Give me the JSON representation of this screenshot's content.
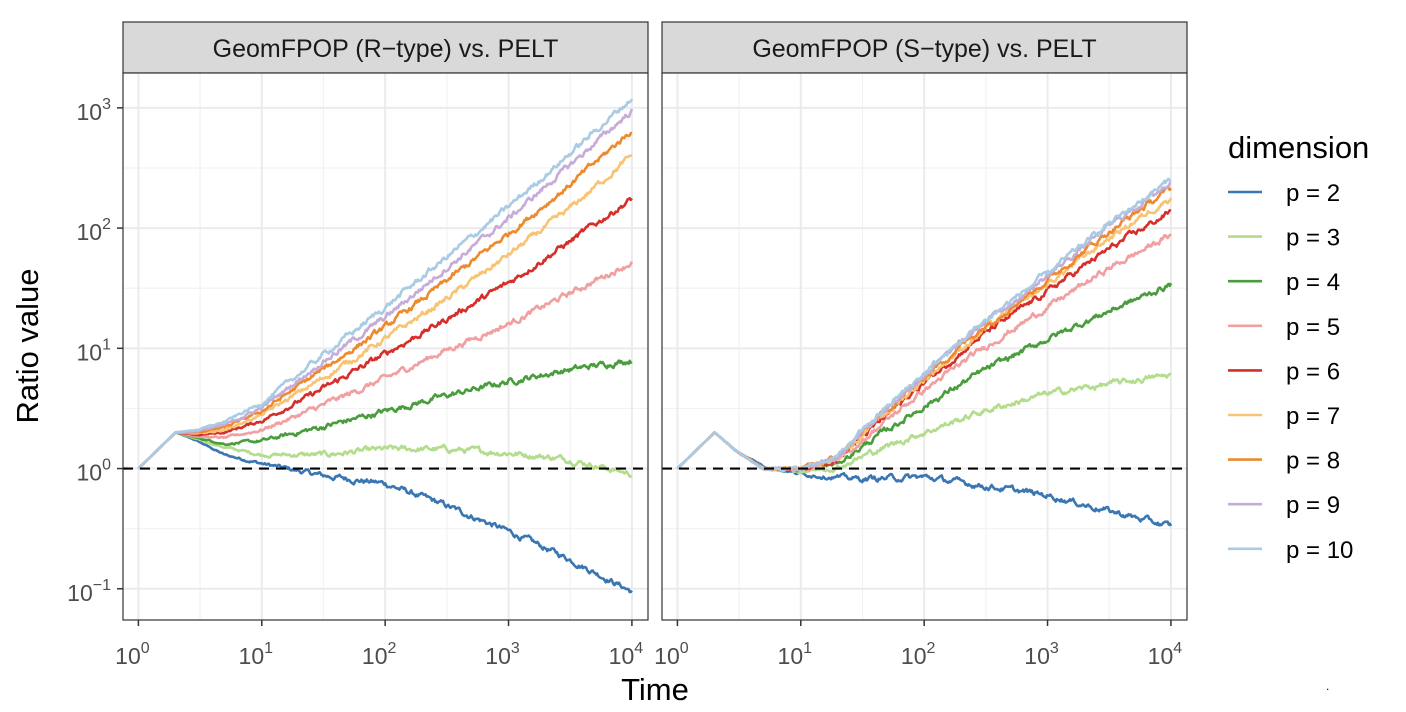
{
  "chart_data": {
    "type": "line",
    "xlabel": "Time",
    "ylabel": "Ratio value",
    "x_scale": "log10",
    "y_scale": "log10",
    "xlim": [
      0.75,
      13500
    ],
    "ylim": [
      0.055,
      1950
    ],
    "x_ticks": [
      1,
      10,
      100,
      1000,
      10000
    ],
    "x_tick_labels": [
      {
        "base": "10",
        "exp": "0"
      },
      {
        "base": "10",
        "exp": "1"
      },
      {
        "base": "10",
        "exp": "2"
      },
      {
        "base": "10",
        "exp": "3"
      },
      {
        "base": "10",
        "exp": "4"
      }
    ],
    "y_ticks": [
      0.1,
      1,
      10,
      100,
      1000
    ],
    "y_tick_labels": [
      {
        "base": "10",
        "exp": "−1"
      },
      {
        "base": "10",
        "exp": "0"
      },
      {
        "base": "10",
        "exp": "1"
      },
      {
        "base": "10",
        "exp": "2"
      },
      {
        "base": "10",
        "exp": "3"
      }
    ],
    "reference_line": {
      "y": 1,
      "style": "dashed",
      "color": "#000000"
    },
    "grid": true,
    "legend": {
      "title": "dimension",
      "position": "right",
      "entries": [
        {
          "label": "p = 2",
          "color": "#3a77b2"
        },
        {
          "label": "p = 3",
          "color": "#b3dc8c"
        },
        {
          "label": "p = 4",
          "color": "#4a9d3c"
        },
        {
          "label": "p = 5",
          "color": "#f0a0a0"
        },
        {
          "label": "p = 6",
          "color": "#d62f2b"
        },
        {
          "label": "p = 7",
          "color": "#f8c474"
        },
        {
          "label": "p = 8",
          "color": "#ee8a2e"
        },
        {
          "label": "p = 9",
          "color": "#c5acd9"
        },
        {
          "label": "p = 10",
          "color": "#a9cbe3"
        }
      ]
    },
    "panels": [
      {
        "title": "GeomFPOP (R−type) vs. PELT",
        "series": [
          {
            "p": 2,
            "color": "#3a77b2",
            "points": [
              [
                1,
                1
              ],
              [
                2,
                2
              ],
              [
                3,
                1.7
              ],
              [
                5,
                1.3
              ],
              [
                10,
                1.1
              ],
              [
                30,
                0.88
              ],
              [
                100,
                0.75
              ],
              [
                300,
                0.5
              ],
              [
                1000,
                0.3
              ],
              [
                3000,
                0.18
              ],
              [
                10000,
                0.095
              ]
            ]
          },
          {
            "p": 3,
            "color": "#b3dc8c",
            "points": [
              [
                1,
                1
              ],
              [
                2,
                2
              ],
              [
                3,
                1.75
              ],
              [
                5,
                1.5
              ],
              [
                10,
                1.3
              ],
              [
                30,
                1.3
              ],
              [
                100,
                1.45
              ],
              [
                300,
                1.45
              ],
              [
                1000,
                1.35
              ],
              [
                3000,
                1.2
              ],
              [
                10000,
                0.9
              ]
            ]
          },
          {
            "p": 4,
            "color": "#4a9d3c",
            "points": [
              [
                1,
                1
              ],
              [
                2,
                2
              ],
              [
                3,
                1.8
              ],
              [
                5,
                1.6
              ],
              [
                10,
                1.7
              ],
              [
                30,
                2.2
              ],
              [
                100,
                3
              ],
              [
                300,
                4
              ],
              [
                1000,
                5.3
              ],
              [
                3000,
                6.6
              ],
              [
                10000,
                8
              ]
            ]
          },
          {
            "p": 5,
            "color": "#f0a0a0",
            "points": [
              [
                1,
                1
              ],
              [
                2,
                2
              ],
              [
                3,
                1.85
              ],
              [
                5,
                1.8
              ],
              [
                10,
                2.1
              ],
              [
                30,
                3.3
              ],
              [
                100,
                5.6
              ],
              [
                300,
                9.5
              ],
              [
                1000,
                16
              ],
              [
                3000,
                28
              ],
              [
                10000,
                52
              ]
            ]
          },
          {
            "p": 6,
            "color": "#d62f2b",
            "points": [
              [
                1,
                1
              ],
              [
                2,
                2
              ],
              [
                3,
                1.9
              ],
              [
                5,
                2
              ],
              [
                10,
                2.5
              ],
              [
                30,
                4.5
              ],
              [
                100,
                9
              ],
              [
                300,
                17
              ],
              [
                1000,
                35
              ],
              [
                3000,
                75
              ],
              [
                10000,
                175
              ]
            ]
          },
          {
            "p": 7,
            "color": "#f8c474",
            "points": [
              [
                1,
                1
              ],
              [
                2,
                2
              ],
              [
                3,
                1.95
              ],
              [
                5,
                2.1
              ],
              [
                10,
                2.8
              ],
              [
                30,
                5.5
              ],
              [
                100,
                12
              ],
              [
                300,
                25
              ],
              [
                1000,
                60
              ],
              [
                3000,
                140
              ],
              [
                10000,
                400
              ]
            ]
          },
          {
            "p": 8,
            "color": "#ee8a2e",
            "points": [
              [
                1,
                1
              ],
              [
                2,
                2
              ],
              [
                3,
                2
              ],
              [
                5,
                2.2
              ],
              [
                10,
                3
              ],
              [
                30,
                6.5
              ],
              [
                100,
                15
              ],
              [
                300,
                35
              ],
              [
                1000,
                90
              ],
              [
                3000,
                220
              ],
              [
                10000,
                650
              ]
            ]
          },
          {
            "p": 9,
            "color": "#c5acd9",
            "points": [
              [
                1,
                1
              ],
              [
                2,
                2
              ],
              [
                3,
                2.05
              ],
              [
                5,
                2.3
              ],
              [
                10,
                3.2
              ],
              [
                30,
                7.5
              ],
              [
                100,
                18
              ],
              [
                300,
                45
              ],
              [
                1000,
                120
              ],
              [
                3000,
                320
              ],
              [
                10000,
                950
              ]
            ]
          },
          {
            "p": 10,
            "color": "#a9cbe3",
            "points": [
              [
                1,
                1
              ],
              [
                2,
                2
              ],
              [
                3,
                2.1
              ],
              [
                5,
                2.45
              ],
              [
                10,
                3.5
              ],
              [
                30,
                8.5
              ],
              [
                100,
                22
              ],
              [
                300,
                55
              ],
              [
                1000,
                150
              ],
              [
                3000,
                400
              ],
              [
                10000,
                1200
              ]
            ]
          }
        ]
      },
      {
        "title": "GeomFPOP (S−type) vs. PELT",
        "series": [
          {
            "p": 2,
            "color": "#3a77b2",
            "points": [
              [
                1,
                1
              ],
              [
                2,
                2
              ],
              [
                3,
                1.4
              ],
              [
                5,
                1.05
              ],
              [
                10,
                0.9
              ],
              [
                30,
                0.82
              ],
              [
                100,
                0.85
              ],
              [
                300,
                0.72
              ],
              [
                1000,
                0.6
              ],
              [
                3000,
                0.45
              ],
              [
                10000,
                0.33
              ]
            ]
          },
          {
            "p": 3,
            "color": "#b3dc8c",
            "points": [
              [
                1,
                1
              ],
              [
                2,
                2
              ],
              [
                3,
                1.4
              ],
              [
                5,
                1
              ],
              [
                10,
                0.95
              ],
              [
                20,
                1.02
              ],
              [
                40,
                1.4
              ],
              [
                100,
                2
              ],
              [
                300,
                3
              ],
              [
                1000,
                4.2
              ],
              [
                3000,
                5
              ],
              [
                10000,
                6
              ]
            ]
          },
          {
            "p": 4,
            "color": "#4a9d3c",
            "points": [
              [
                1,
                1
              ],
              [
                2,
                2
              ],
              [
                3,
                1.4
              ],
              [
                5,
                1
              ],
              [
                10,
                0.97
              ],
              [
                20,
                1.1
              ],
              [
                40,
                1.8
              ],
              [
                100,
                3.3
              ],
              [
                300,
                6.5
              ],
              [
                1000,
                12
              ],
              [
                3000,
                20
              ],
              [
                10000,
                34
              ]
            ]
          },
          {
            "p": 5,
            "color": "#f0a0a0",
            "points": [
              [
                1,
                1
              ],
              [
                2,
                2
              ],
              [
                3,
                1.4
              ],
              [
                5,
                1
              ],
              [
                10,
                0.98
              ],
              [
                20,
                1.15
              ],
              [
                40,
                2.1
              ],
              [
                100,
                4.5
              ],
              [
                300,
                10
              ],
              [
                1000,
                22
              ],
              [
                3000,
                45
              ],
              [
                10000,
                88
              ]
            ]
          },
          {
            "p": 6,
            "color": "#d62f2b",
            "points": [
              [
                1,
                1
              ],
              [
                2,
                2
              ],
              [
                3,
                1.4
              ],
              [
                5,
                1
              ],
              [
                10,
                0.99
              ],
              [
                20,
                1.2
              ],
              [
                40,
                2.3
              ],
              [
                100,
                5.2
              ],
              [
                300,
                13
              ],
              [
                1000,
                30
              ],
              [
                3000,
                65
              ],
              [
                10000,
                138
              ]
            ]
          },
          {
            "p": 7,
            "color": "#f8c474",
            "points": [
              [
                1,
                1
              ],
              [
                2,
                2
              ],
              [
                3,
                1.4
              ],
              [
                5,
                1
              ],
              [
                10,
                1
              ],
              [
                20,
                1.22
              ],
              [
                40,
                2.4
              ],
              [
                100,
                5.5
              ],
              [
                300,
                14
              ],
              [
                1000,
                34
              ],
              [
                3000,
                80
              ],
              [
                10000,
                180
              ]
            ]
          },
          {
            "p": 8,
            "color": "#ee8a2e",
            "points": [
              [
                1,
                1
              ],
              [
                2,
                2
              ],
              [
                3,
                1.4
              ],
              [
                5,
                1
              ],
              [
                10,
                1
              ],
              [
                20,
                1.24
              ],
              [
                40,
                2.5
              ],
              [
                100,
                5.8
              ],
              [
                300,
                15
              ],
              [
                1000,
                37
              ],
              [
                3000,
                90
              ],
              [
                10000,
                215
              ]
            ]
          },
          {
            "p": 9,
            "color": "#c5acd9",
            "points": [
              [
                1,
                1
              ],
              [
                2,
                2
              ],
              [
                3,
                1.4
              ],
              [
                5,
                1
              ],
              [
                10,
                1
              ],
              [
                20,
                1.25
              ],
              [
                40,
                2.6
              ],
              [
                100,
                6
              ],
              [
                300,
                16
              ],
              [
                1000,
                40
              ],
              [
                3000,
                100
              ],
              [
                10000,
                240
              ]
            ]
          },
          {
            "p": 10,
            "color": "#a9cbe3",
            "points": [
              [
                1,
                1
              ],
              [
                2,
                2
              ],
              [
                3,
                1.4
              ],
              [
                5,
                1
              ],
              [
                10,
                1
              ],
              [
                20,
                1.26
              ],
              [
                40,
                2.65
              ],
              [
                100,
                6.2
              ],
              [
                300,
                16.5
              ],
              [
                1000,
                42
              ],
              [
                3000,
                105
              ],
              [
                10000,
                255
              ]
            ]
          }
        ]
      }
    ]
  }
}
